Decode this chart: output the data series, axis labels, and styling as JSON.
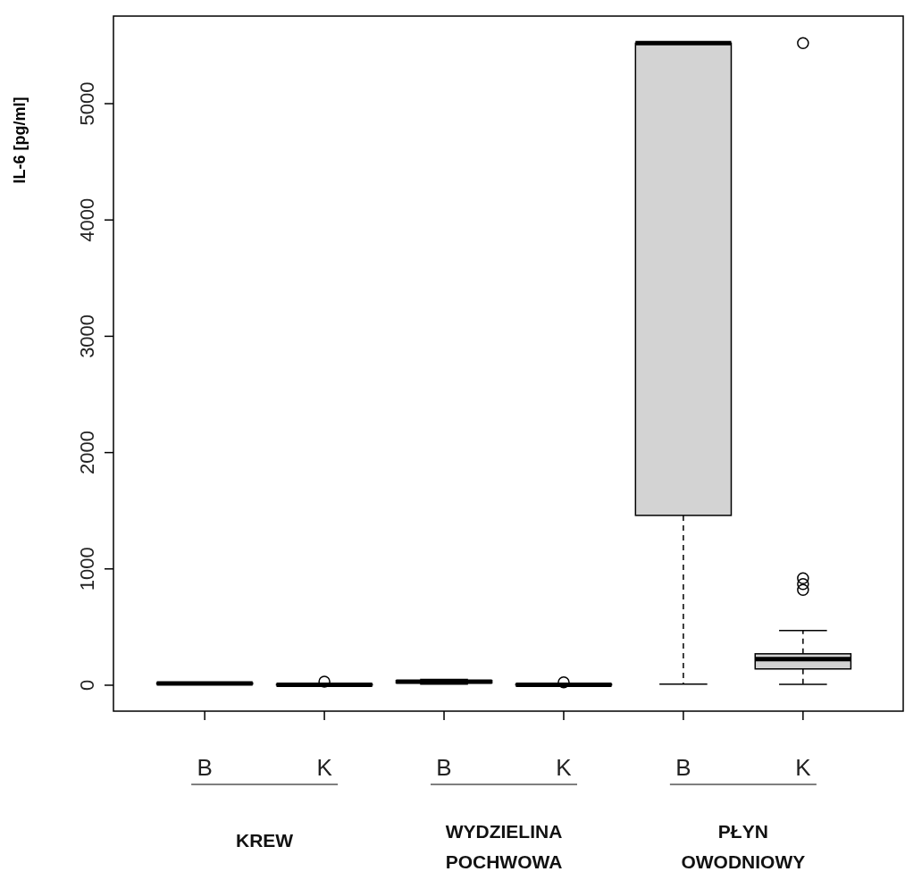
{
  "chart_data": {
    "type": "box",
    "ylabel": "IL-6 [pg/ml]",
    "categories": [
      "B",
      "K",
      "B",
      "K",
      "B",
      "K"
    ],
    "ylim": [
      -223,
      5753
    ],
    "yticks": [
      0,
      1000,
      2000,
      3000,
      4000,
      5000
    ],
    "grid": false,
    "series": [
      {
        "color": "#d3d3d3",
        "boxes": [
          {
            "low": 5,
            "q1": 10,
            "median": 15,
            "q3": 20,
            "high": 25
          },
          {
            "low": 0,
            "q1": 2,
            "median": 4,
            "q3": 7,
            "high": 10,
            "outliers": [
              30
            ]
          },
          {
            "low": 10,
            "q1": 20,
            "median": 30,
            "q3": 40,
            "high": 50
          },
          {
            "low": 0,
            "q1": 2,
            "median": 4,
            "q3": 8,
            "high": 12,
            "outliers": [
              25
            ]
          },
          {
            "low": 10,
            "q1": 1460,
            "median": 5520,
            "q3": 5520,
            "high": 5520
          },
          {
            "low": 8,
            "q1": 140,
            "median": 225,
            "q3": 270,
            "high": 470,
            "outliers": [
              920,
              870,
              820,
              5520
            ]
          }
        ]
      }
    ],
    "annotations": [
      "KREW",
      "WYDZIELINA\nPOCHWOWA",
      "PŁYN\nOWODNIOWY"
    ]
  }
}
